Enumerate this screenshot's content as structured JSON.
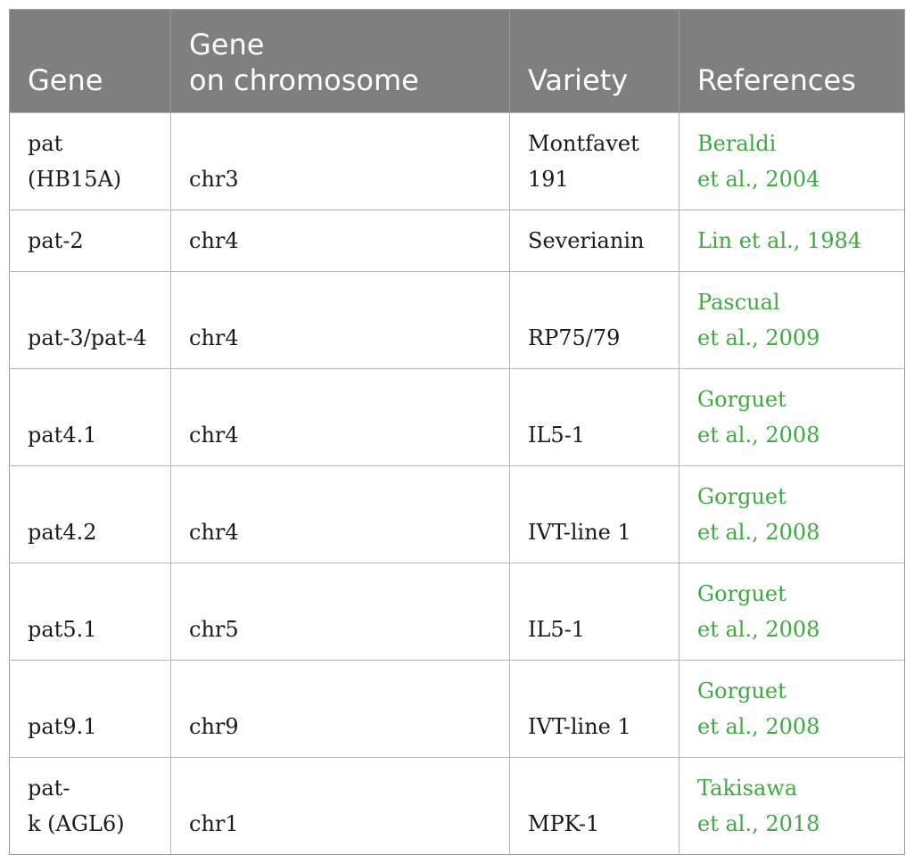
{
  "table": {
    "headers": [
      "Gene",
      "Gene\non chromosome",
      "Variety",
      "References"
    ],
    "rows": [
      {
        "gene": [
          "pat",
          "(HB15A)"
        ],
        "chromosome": "chr3",
        "variety": [
          "Montfavet",
          "191"
        ],
        "reference": [
          "Beraldi",
          "et al., 2004"
        ]
      },
      {
        "gene": [
          "pat-2"
        ],
        "chromosome": "chr4",
        "variety": [
          "Severianin"
        ],
        "reference": [
          "Lin et al., 1984"
        ]
      },
      {
        "gene": [
          "pat-3/pat-4"
        ],
        "chromosome": "chr4",
        "variety": [
          "RP75/79"
        ],
        "reference": [
          "Pascual",
          "et al., 2009"
        ]
      },
      {
        "gene": [
          "pat4.1"
        ],
        "chromosome": "chr4",
        "variety": [
          "IL5-1"
        ],
        "reference": [
          "Gorguet",
          "et al., 2008"
        ]
      },
      {
        "gene": [
          "pat4.2"
        ],
        "chromosome": "chr4",
        "variety": [
          "IVT-line 1"
        ],
        "reference": [
          "Gorguet",
          "et al., 2008"
        ]
      },
      {
        "gene": [
          "pat5.1"
        ],
        "chromosome": "chr5",
        "variety": [
          "IL5-1"
        ],
        "reference": [
          "Gorguet",
          "et al., 2008"
        ]
      },
      {
        "gene": [
          "pat9.1"
        ],
        "chromosome": "chr9",
        "variety": [
          "IVT-line 1"
        ],
        "reference": [
          "Gorguet",
          "et al., 2008"
        ]
      },
      {
        "gene": [
          "pat-",
          "k (AGL6)"
        ],
        "chromosome": "chr1",
        "variety": [
          "MPK-1"
        ],
        "reference": [
          "Takisawa",
          "et al., 2018"
        ]
      }
    ]
  },
  "colors": {
    "header_bg": "#7f7f7f",
    "header_text": "#ffffff",
    "reference_link": "#3daa3d",
    "border": "#b5b5b5"
  }
}
